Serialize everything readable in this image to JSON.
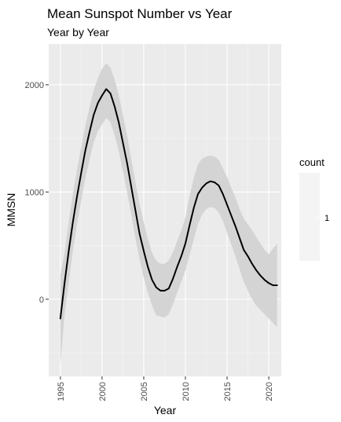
{
  "chart_data": {
    "type": "line",
    "title": "Mean Sunspot Number vs Year",
    "subtitle": "Year by Year",
    "xlabel": "Year",
    "ylabel": "MMSN",
    "x_ticks": [
      1995,
      2000,
      2005,
      2010,
      2015,
      2020
    ],
    "y_ticks": [
      0,
      1000,
      2000
    ],
    "xlim": [
      1993.6,
      2021.5
    ],
    "ylim": [
      -720,
      2380
    ],
    "grid": true,
    "legend": {
      "title": "count",
      "labels": [
        "1"
      ],
      "position": "right"
    },
    "series": [
      {
        "type": "smooth_line",
        "color": "#000000",
        "x": [
          1995,
          1995.5,
          1996,
          1996.5,
          1997,
          1997.5,
          1998,
          1998.5,
          1999,
          1999.5,
          2000,
          2000.5,
          2001,
          2001.5,
          2002,
          2002.5,
          2003,
          2003.5,
          2004,
          2004.5,
          2005,
          2005.5,
          2006,
          2006.5,
          2007,
          2007.5,
          2008,
          2008.5,
          2009,
          2009.5,
          2010,
          2010.5,
          2011,
          2011.5,
          2012,
          2012.5,
          2013,
          2013.5,
          2014,
          2014.5,
          2015,
          2015.5,
          2016,
          2016.5,
          2017,
          2017.5,
          2018,
          2018.5,
          2019,
          2019.5,
          2020,
          2020.5,
          2021
        ],
        "y": [
          -180,
          150,
          450,
          720,
          960,
          1180,
          1390,
          1560,
          1720,
          1830,
          1900,
          1960,
          1920,
          1800,
          1650,
          1460,
          1270,
          1050,
          830,
          610,
          450,
          300,
          180,
          110,
          80,
          80,
          100,
          190,
          300,
          400,
          520,
          690,
          850,
          980,
          1040,
          1080,
          1100,
          1090,
          1060,
          980,
          880,
          780,
          680,
          570,
          460,
          400,
          330,
          270,
          220,
          180,
          150,
          130,
          130
        ],
        "lower": [
          -600,
          -150,
          160,
          450,
          700,
          920,
          1130,
          1300,
          1460,
          1570,
          1630,
          1690,
          1650,
          1530,
          1380,
          1190,
          1000,
          790,
          570,
          370,
          200,
          60,
          -60,
          -150,
          -160,
          -170,
          -140,
          -50,
          60,
          160,
          270,
          410,
          560,
          700,
          790,
          840,
          860,
          850,
          810,
          730,
          620,
          510,
          400,
          280,
          160,
          80,
          0,
          -60,
          -100,
          -140,
          -180,
          -220,
          -260
        ],
        "upper": [
          230,
          430,
          720,
          980,
          1210,
          1420,
          1620,
          1790,
          1950,
          2060,
          2150,
          2200,
          2160,
          2050,
          1900,
          1720,
          1530,
          1310,
          1090,
          880,
          720,
          560,
          430,
          360,
          330,
          330,
          360,
          440,
          540,
          640,
          760,
          960,
          1130,
          1260,
          1310,
          1330,
          1340,
          1330,
          1300,
          1220,
          1140,
          1040,
          950,
          840,
          750,
          700,
          640,
          580,
          520,
          460,
          420,
          470,
          520
        ],
        "band_color": "#d4d4d4"
      }
    ]
  }
}
